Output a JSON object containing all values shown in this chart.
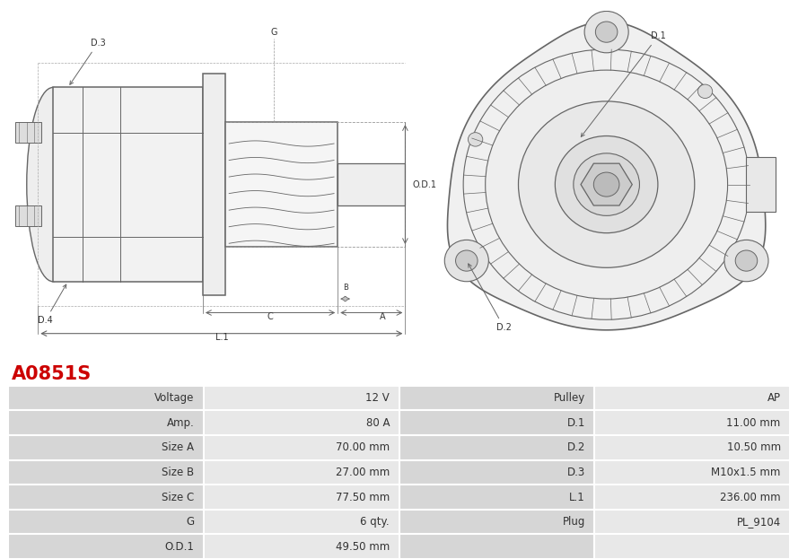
{
  "title": "A0851S",
  "title_color": "#cc0000",
  "bg_color": "#ffffff",
  "table_text_color": "#333333",
  "label_bg": "#d6d6d6",
  "value_bg": "#e8e8e8",
  "left_col_rows": [
    [
      "Voltage",
      "12 V"
    ],
    [
      "Amp.",
      "80 A"
    ],
    [
      "Size A",
      "70.00 mm"
    ],
    [
      "Size B",
      "27.00 mm"
    ],
    [
      "Size C",
      "77.50 mm"
    ],
    [
      "G",
      "6 qty."
    ],
    [
      "O.D.1",
      "49.50 mm"
    ]
  ],
  "right_col_rows": [
    [
      "Pulley",
      "AP"
    ],
    [
      "D.1",
      "11.00 mm"
    ],
    [
      "D.2",
      "10.50 mm"
    ],
    [
      "D.3",
      "M10x1.5 mm"
    ],
    [
      "L.1",
      "236.00 mm"
    ],
    [
      "Plug",
      "PL_9104"
    ],
    [
      "",
      ""
    ]
  ],
  "figsize": [
    8.89,
    6.23
  ],
  "dpi": 100
}
